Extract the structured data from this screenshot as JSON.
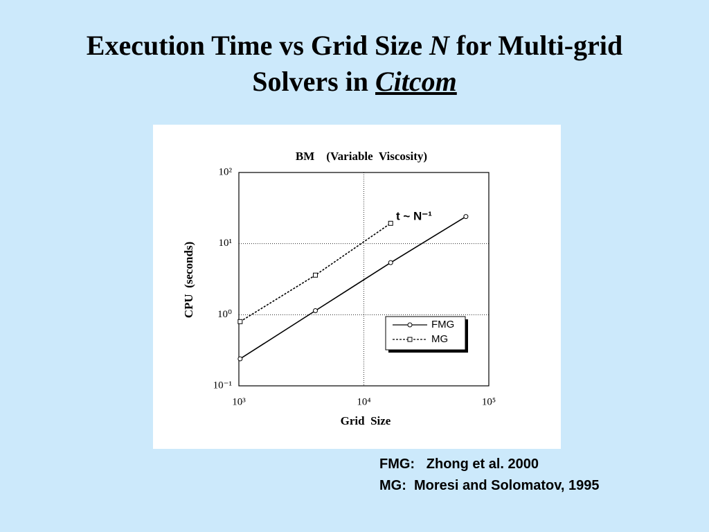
{
  "slide": {
    "title_parts": [
      "Execution Time vs Grid Size ",
      "N",
      " for Multi-grid",
      "Solvers in ",
      "Citcom"
    ]
  },
  "references": [
    "FMG:   Zhong et al. 2000",
    "MG:  Moresi and Solomatov, 1995"
  ],
  "chart_data": {
    "type": "line",
    "title": "BM    (Variable  Viscosity)",
    "x_label": "Grid  Size",
    "y_label": "CPU  (seconds)",
    "log_x": true,
    "log_y": true,
    "grid": true,
    "legend": "lower right",
    "annotation": "t ~ N⁻¹",
    "x": [
      1024,
      4096,
      16384,
      65536
    ],
    "series": [
      {
        "name": "FMG",
        "color": "#000000",
        "style": "solid",
        "marker": "circle",
        "values": [
          0.24,
          1.14,
          5.4,
          24
        ]
      },
      {
        "name": "MG",
        "color": "#000000",
        "style": "dotted",
        "marker": "square",
        "values": [
          0.8,
          3.6,
          19.3,
          null
        ]
      }
    ],
    "xlim": [
      1000,
      100000
    ],
    "xticks": [
      {
        "value": 1000,
        "label": "10³"
      },
      {
        "value": 10000,
        "label": "10⁴"
      },
      {
        "value": 100000,
        "label": "10⁵"
      }
    ],
    "ylim": [
      0.1,
      100
    ],
    "yticks": [
      {
        "value": 0.1,
        "label": "10⁻¹"
      },
      {
        "value": 1,
        "label": "10⁰"
      },
      {
        "value": 10,
        "label": "10¹"
      },
      {
        "value": 100,
        "label": "10²"
      }
    ]
  }
}
